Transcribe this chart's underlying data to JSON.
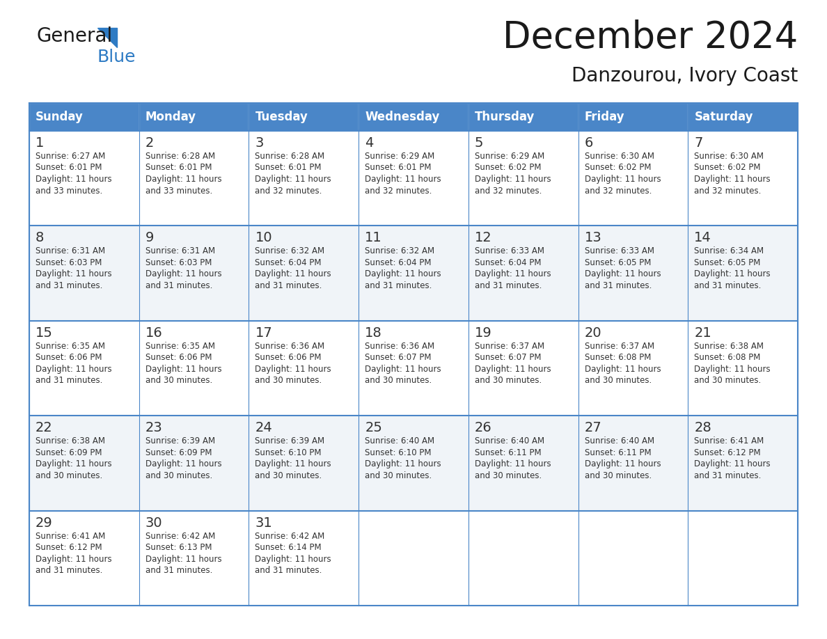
{
  "title": "December 2024",
  "subtitle": "Danzourou, Ivory Coast",
  "header_bg": "#4a86c8",
  "header_text": "#ffffff",
  "cell_bg_white": "#ffffff",
  "cell_bg_gray": "#f0f4f8",
  "border_color": "#4a86c8",
  "text_color": "#333333",
  "day_headers": [
    "Sunday",
    "Monday",
    "Tuesday",
    "Wednesday",
    "Thursday",
    "Friday",
    "Saturday"
  ],
  "title_color": "#1a1a1a",
  "subtitle_color": "#1a1a1a",
  "logo_general_color": "#1a1a1a",
  "logo_blue_color": "#2e7bc4",
  "days": [
    {
      "day": 1,
      "col": 0,
      "row": 0,
      "sunrise": "6:27 AM",
      "sunset": "6:01 PM",
      "daylight_hours": 11,
      "daylight_minutes": 33
    },
    {
      "day": 2,
      "col": 1,
      "row": 0,
      "sunrise": "6:28 AM",
      "sunset": "6:01 PM",
      "daylight_hours": 11,
      "daylight_minutes": 33
    },
    {
      "day": 3,
      "col": 2,
      "row": 0,
      "sunrise": "6:28 AM",
      "sunset": "6:01 PM",
      "daylight_hours": 11,
      "daylight_minutes": 32
    },
    {
      "day": 4,
      "col": 3,
      "row": 0,
      "sunrise": "6:29 AM",
      "sunset": "6:01 PM",
      "daylight_hours": 11,
      "daylight_minutes": 32
    },
    {
      "day": 5,
      "col": 4,
      "row": 0,
      "sunrise": "6:29 AM",
      "sunset": "6:02 PM",
      "daylight_hours": 11,
      "daylight_minutes": 32
    },
    {
      "day": 6,
      "col": 5,
      "row": 0,
      "sunrise": "6:30 AM",
      "sunset": "6:02 PM",
      "daylight_hours": 11,
      "daylight_minutes": 32
    },
    {
      "day": 7,
      "col": 6,
      "row": 0,
      "sunrise": "6:30 AM",
      "sunset": "6:02 PM",
      "daylight_hours": 11,
      "daylight_minutes": 32
    },
    {
      "day": 8,
      "col": 0,
      "row": 1,
      "sunrise": "6:31 AM",
      "sunset": "6:03 PM",
      "daylight_hours": 11,
      "daylight_minutes": 31
    },
    {
      "day": 9,
      "col": 1,
      "row": 1,
      "sunrise": "6:31 AM",
      "sunset": "6:03 PM",
      "daylight_hours": 11,
      "daylight_minutes": 31
    },
    {
      "day": 10,
      "col": 2,
      "row": 1,
      "sunrise": "6:32 AM",
      "sunset": "6:04 PM",
      "daylight_hours": 11,
      "daylight_minutes": 31
    },
    {
      "day": 11,
      "col": 3,
      "row": 1,
      "sunrise": "6:32 AM",
      "sunset": "6:04 PM",
      "daylight_hours": 11,
      "daylight_minutes": 31
    },
    {
      "day": 12,
      "col": 4,
      "row": 1,
      "sunrise": "6:33 AM",
      "sunset": "6:04 PM",
      "daylight_hours": 11,
      "daylight_minutes": 31
    },
    {
      "day": 13,
      "col": 5,
      "row": 1,
      "sunrise": "6:33 AM",
      "sunset": "6:05 PM",
      "daylight_hours": 11,
      "daylight_minutes": 31
    },
    {
      "day": 14,
      "col": 6,
      "row": 1,
      "sunrise": "6:34 AM",
      "sunset": "6:05 PM",
      "daylight_hours": 11,
      "daylight_minutes": 31
    },
    {
      "day": 15,
      "col": 0,
      "row": 2,
      "sunrise": "6:35 AM",
      "sunset": "6:06 PM",
      "daylight_hours": 11,
      "daylight_minutes": 31
    },
    {
      "day": 16,
      "col": 1,
      "row": 2,
      "sunrise": "6:35 AM",
      "sunset": "6:06 PM",
      "daylight_hours": 11,
      "daylight_minutes": 30
    },
    {
      "day": 17,
      "col": 2,
      "row": 2,
      "sunrise": "6:36 AM",
      "sunset": "6:06 PM",
      "daylight_hours": 11,
      "daylight_minutes": 30
    },
    {
      "day": 18,
      "col": 3,
      "row": 2,
      "sunrise": "6:36 AM",
      "sunset": "6:07 PM",
      "daylight_hours": 11,
      "daylight_minutes": 30
    },
    {
      "day": 19,
      "col": 4,
      "row": 2,
      "sunrise": "6:37 AM",
      "sunset": "6:07 PM",
      "daylight_hours": 11,
      "daylight_minutes": 30
    },
    {
      "day": 20,
      "col": 5,
      "row": 2,
      "sunrise": "6:37 AM",
      "sunset": "6:08 PM",
      "daylight_hours": 11,
      "daylight_minutes": 30
    },
    {
      "day": 21,
      "col": 6,
      "row": 2,
      "sunrise": "6:38 AM",
      "sunset": "6:08 PM",
      "daylight_hours": 11,
      "daylight_minutes": 30
    },
    {
      "day": 22,
      "col": 0,
      "row": 3,
      "sunrise": "6:38 AM",
      "sunset": "6:09 PM",
      "daylight_hours": 11,
      "daylight_minutes": 30
    },
    {
      "day": 23,
      "col": 1,
      "row": 3,
      "sunrise": "6:39 AM",
      "sunset": "6:09 PM",
      "daylight_hours": 11,
      "daylight_minutes": 30
    },
    {
      "day": 24,
      "col": 2,
      "row": 3,
      "sunrise": "6:39 AM",
      "sunset": "6:10 PM",
      "daylight_hours": 11,
      "daylight_minutes": 30
    },
    {
      "day": 25,
      "col": 3,
      "row": 3,
      "sunrise": "6:40 AM",
      "sunset": "6:10 PM",
      "daylight_hours": 11,
      "daylight_minutes": 30
    },
    {
      "day": 26,
      "col": 4,
      "row": 3,
      "sunrise": "6:40 AM",
      "sunset": "6:11 PM",
      "daylight_hours": 11,
      "daylight_minutes": 30
    },
    {
      "day": 27,
      "col": 5,
      "row": 3,
      "sunrise": "6:40 AM",
      "sunset": "6:11 PM",
      "daylight_hours": 11,
      "daylight_minutes": 30
    },
    {
      "day": 28,
      "col": 6,
      "row": 3,
      "sunrise": "6:41 AM",
      "sunset": "6:12 PM",
      "daylight_hours": 11,
      "daylight_minutes": 31
    },
    {
      "day": 29,
      "col": 0,
      "row": 4,
      "sunrise": "6:41 AM",
      "sunset": "6:12 PM",
      "daylight_hours": 11,
      "daylight_minutes": 31
    },
    {
      "day": 30,
      "col": 1,
      "row": 4,
      "sunrise": "6:42 AM",
      "sunset": "6:13 PM",
      "daylight_hours": 11,
      "daylight_minutes": 31
    },
    {
      "day": 31,
      "col": 2,
      "row": 4,
      "sunrise": "6:42 AM",
      "sunset": "6:14 PM",
      "daylight_hours": 11,
      "daylight_minutes": 31
    }
  ]
}
